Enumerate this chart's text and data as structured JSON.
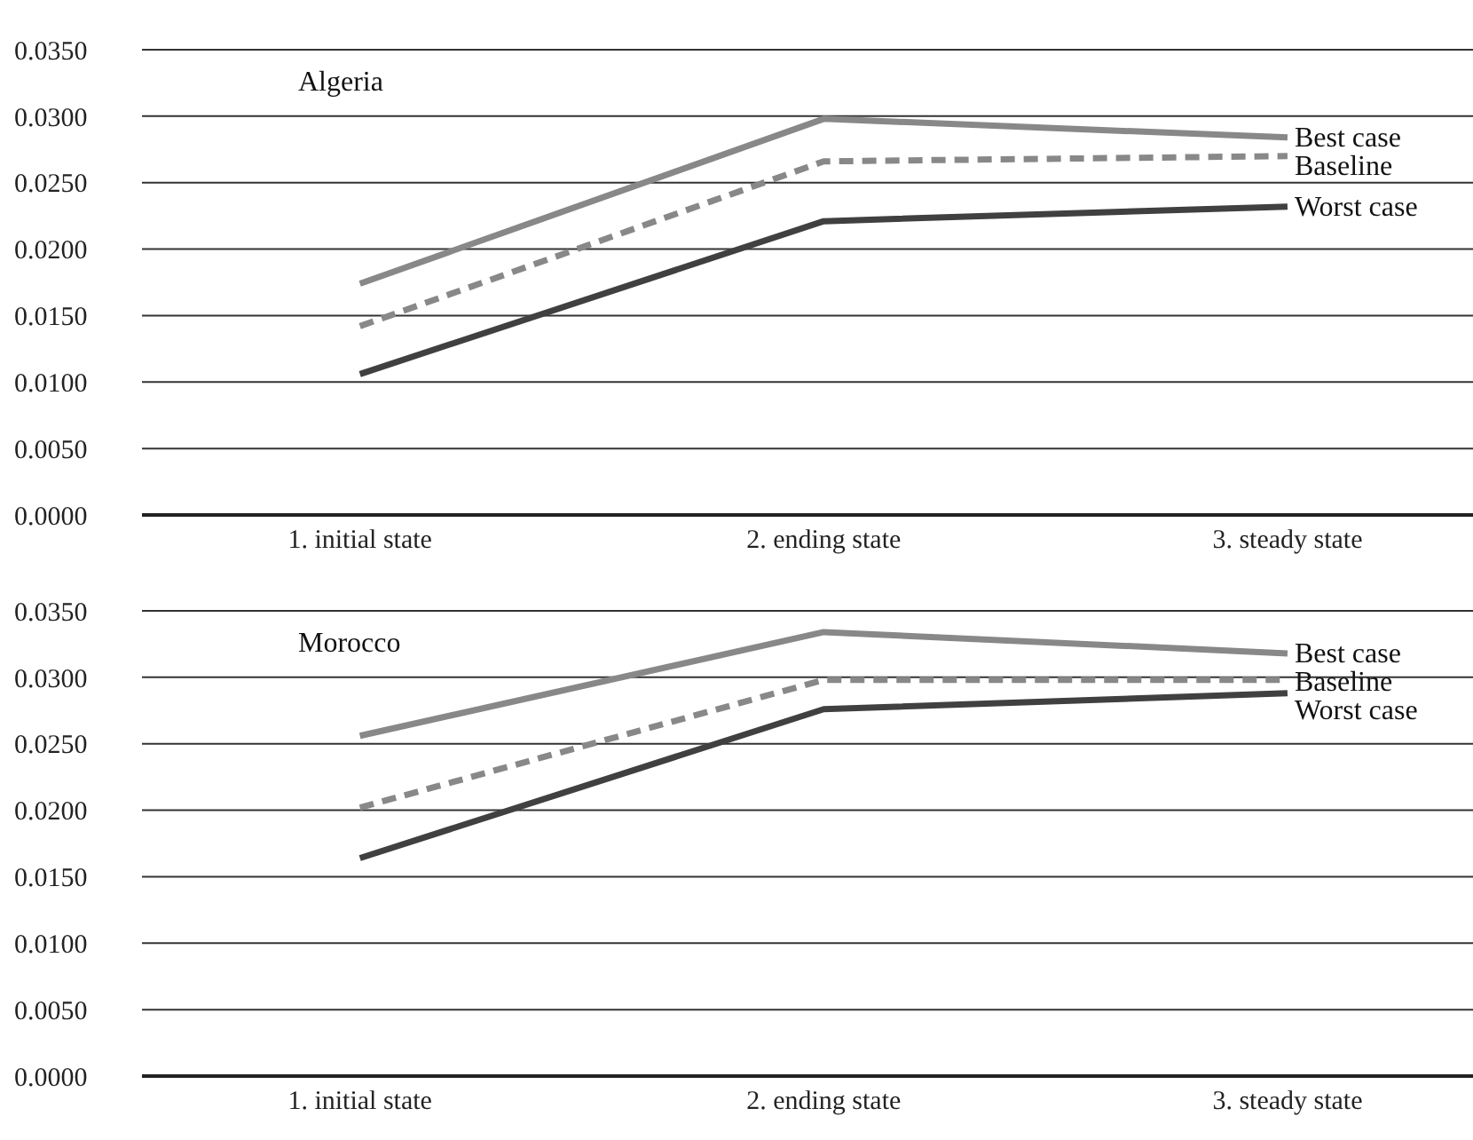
{
  "chart_data": [
    {
      "type": "line",
      "title": "Algeria",
      "categories": [
        "1. initial state",
        "2. ending state",
        "3. steady state"
      ],
      "series": [
        {
          "name": "Best case",
          "color": "#888888",
          "line_style": "solid",
          "values": [
            0.0174,
            0.0298,
            0.0284
          ]
        },
        {
          "name": "Baseline",
          "color": "#888888",
          "line_style": "dashed",
          "values": [
            0.0142,
            0.0266,
            0.027
          ]
        },
        {
          "name": "Worst case",
          "color": "#404040",
          "line_style": "solid",
          "values": [
            0.0106,
            0.0221,
            0.0232
          ]
        }
      ],
      "ylim": [
        0,
        0.035
      ],
      "yticks": [
        {
          "value": 0,
          "label": "0.0000"
        },
        {
          "value": 0.005,
          "label": "0.0050"
        },
        {
          "value": 0.01,
          "label": "0.0100"
        },
        {
          "value": 0.015,
          "label": "0.0150"
        },
        {
          "value": 0.02,
          "label": "0.0200"
        },
        {
          "value": 0.025,
          "label": "0.0250"
        },
        {
          "value": 0.03,
          "label": "0.0300"
        },
        {
          "value": 0.035,
          "label": "0.0350"
        }
      ],
      "grid": "y",
      "marker": "none"
    },
    {
      "type": "line",
      "title": "Morocco",
      "categories": [
        "1. initial state",
        "2. ending state",
        "3. steady state"
      ],
      "series": [
        {
          "name": "Best case",
          "color": "#888888",
          "line_style": "solid",
          "values": [
            0.0256,
            0.0334,
            0.0318
          ]
        },
        {
          "name": "Baseline",
          "color": "#888888",
          "line_style": "dashed",
          "values": [
            0.0202,
            0.0298,
            0.0298
          ]
        },
        {
          "name": "Worst case",
          "color": "#404040",
          "line_style": "solid",
          "values": [
            0.0164,
            0.0276,
            0.0288
          ]
        }
      ],
      "ylim": [
        0,
        0.035
      ],
      "yticks": [
        {
          "value": 0,
          "label": "0.0000"
        },
        {
          "value": 0.005,
          "label": "0.0050"
        },
        {
          "value": 0.01,
          "label": "0.0100"
        },
        {
          "value": 0.015,
          "label": "0.0150"
        },
        {
          "value": 0.02,
          "label": "0.0200"
        },
        {
          "value": 0.025,
          "label": "0.0250"
        },
        {
          "value": 0.03,
          "label": "0.0300"
        },
        {
          "value": 0.035,
          "label": "0.0350"
        }
      ],
      "grid": "y",
      "marker": "none"
    }
  ]
}
